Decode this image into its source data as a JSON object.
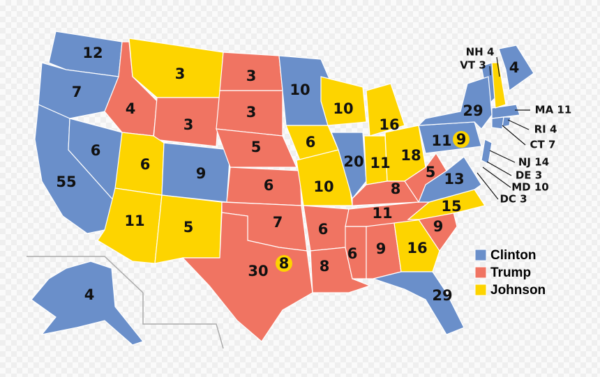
{
  "legend": [
    {
      "name": "Clinton",
      "color": "#6a8fca"
    },
    {
      "name": "Trump",
      "color": "#f07462"
    },
    {
      "name": "Johnson",
      "color": "#fdd400"
    }
  ],
  "states": [
    {
      "label": "12",
      "color": "#6a8fca"
    },
    {
      "label": "7",
      "color": "#6a8fca"
    },
    {
      "label": "55",
      "color": "#6a8fca"
    },
    {
      "label": "6",
      "color": "#6a8fca"
    },
    {
      "label": "4",
      "color": "#f07462"
    },
    {
      "label": "3",
      "color": "#fdd400"
    },
    {
      "label": "3",
      "color": "#f07462"
    },
    {
      "label": "6",
      "color": "#fdd400"
    },
    {
      "label": "9",
      "color": "#6a8fca"
    },
    {
      "label": "11",
      "color": "#fdd400"
    },
    {
      "label": "5",
      "color": "#fdd400"
    },
    {
      "label": "3",
      "color": "#f07462"
    },
    {
      "label": "3",
      "color": "#f07462"
    },
    {
      "label": "5",
      "color": "#f07462"
    },
    {
      "label": "6",
      "color": "#f07462"
    },
    {
      "label": "7",
      "color": "#f07462"
    },
    {
      "label": "30",
      "color": "#f07462"
    },
    {
      "label": "10",
      "color": "#6a8fca"
    },
    {
      "label": "6",
      "color": "#fdd400"
    },
    {
      "label": "10",
      "color": "#fdd400"
    },
    {
      "label": "6",
      "color": "#f07462"
    },
    {
      "label": "8",
      "color": "#f07462"
    },
    {
      "label": "10",
      "color": "#fdd400"
    },
    {
      "label": "20",
      "color": "#6a8fca"
    },
    {
      "label": "16",
      "color": "#fdd400"
    },
    {
      "label": "11",
      "color": "#fdd400"
    },
    {
      "label": "18",
      "color": "#fdd400"
    },
    {
      "label": "8",
      "color": "#f07462"
    },
    {
      "label": "11",
      "color": "#f07462"
    },
    {
      "label": "6",
      "color": "#f07462"
    },
    {
      "label": "9",
      "color": "#f07462"
    },
    {
      "label": "16",
      "color": "#fdd400"
    },
    {
      "label": "29",
      "color": "#6a8fca"
    },
    {
      "label": "9",
      "color": "#f07462"
    },
    {
      "label": "15",
      "color": "#fdd400"
    },
    {
      "label": "13",
      "color": "#6a8fca"
    },
    {
      "label": "5",
      "color": "#f07462"
    },
    {
      "label": "11",
      "color": "#6a8fca"
    },
    {
      "label": "29",
      "color": "#6a8fca"
    },
    {
      "label": "4",
      "color": "#6a8fca"
    },
    {
      "label": "3",
      "color": "#fdd400"
    },
    {
      "label": "4",
      "color": "#6a8fca"
    }
  ],
  "badges": [
    {
      "label": "8",
      "color": "#fdd400"
    },
    {
      "label": "9",
      "color": "#fdd400"
    }
  ],
  "callouts": [
    "NH 4",
    "VT 3",
    "MA 11",
    "RI 4",
    "CT 7",
    "NJ 14",
    "DE 3",
    "MD 10",
    "DC 3"
  ]
}
